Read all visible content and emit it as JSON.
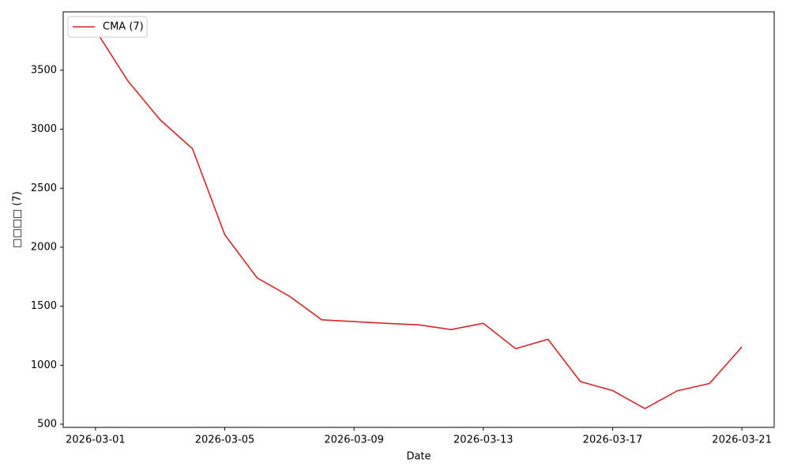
{
  "chart_data": {
    "type": "line",
    "x": [
      "2026-03-01",
      "2026-03-02",
      "2026-03-03",
      "2026-03-04",
      "2026-03-05",
      "2026-03-06",
      "2026-03-07",
      "2026-03-08",
      "2026-03-09",
      "2026-03-10",
      "2026-03-11",
      "2026-03-12",
      "2026-03-13",
      "2026-03-14",
      "2026-03-15",
      "2026-03-16",
      "2026-03-17",
      "2026-03-18",
      "2026-03-19",
      "2026-03-20",
      "2026-03-21"
    ],
    "series": [
      {
        "name": "CMA (7)",
        "color": "#d62728",
        "values": [
          3840,
          3410,
          3080,
          2835,
          2105,
          1740,
          1585,
          1385,
          1370,
          1355,
          1342,
          1302,
          1355,
          1140,
          1220,
          862,
          785,
          632,
          783,
          845,
          1155
        ]
      }
    ],
    "xlabel": "Date",
    "ylabel": "□□□□ (7)",
    "xlim": [
      "2026-02-28",
      "2026-03-22"
    ],
    "xticks": [
      "2026-03-01",
      "2026-03-05",
      "2026-03-09",
      "2026-03-13",
      "2026-03-17",
      "2026-03-21"
    ],
    "ylim": [
      473,
      3995
    ],
    "yticks": [
      500,
      1000,
      1500,
      2000,
      2500,
      3000,
      3500
    ],
    "grid": false,
    "legend": "upper-left"
  }
}
